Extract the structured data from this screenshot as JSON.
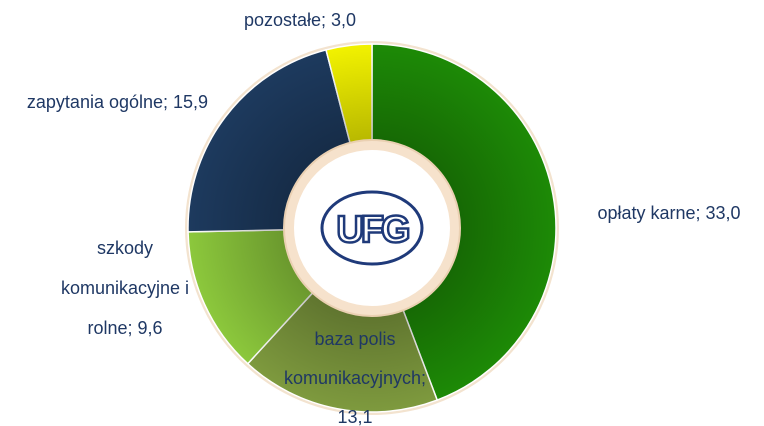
{
  "chart_data": {
    "type": "pie",
    "categories": [
      "opłaty karne",
      "baza polis komunikacyjnych",
      "szkody komunikacyjne i rolne",
      "zapytania ogólne",
      "pozostałe"
    ],
    "values": [
      33.0,
      13.1,
      9.6,
      15.9,
      3.0
    ],
    "value_labels": [
      "33,0",
      "13,1",
      "9,6",
      "15,9",
      "3,0"
    ],
    "label_separator": "; ",
    "colors": [
      "#1d8a06",
      "#7e9a3e",
      "#8cc83c",
      "#1d3a5e",
      "#f2f200"
    ],
    "center_logo": "UFG"
  }
}
